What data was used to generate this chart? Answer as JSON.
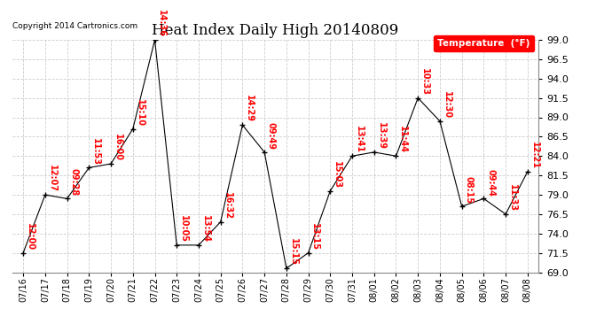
{
  "title": "Heat Index Daily High 20140809",
  "copyright": "Copyright 2014 Cartronics.com",
  "legend_label": "Temperature  (°F)",
  "ylim": [
    69.0,
    99.0
  ],
  "yticks": [
    69.0,
    71.5,
    74.0,
    76.5,
    79.0,
    81.5,
    84.0,
    86.5,
    89.0,
    91.5,
    94.0,
    96.5,
    99.0
  ],
  "dates": [
    "07/16",
    "07/17",
    "07/18",
    "07/19",
    "07/20",
    "07/21",
    "07/22",
    "07/23",
    "07/24",
    "07/25",
    "07/26",
    "07/27",
    "07/28",
    "07/29",
    "07/30",
    "07/31",
    "08/01",
    "08/02",
    "08/03",
    "08/04",
    "08/05",
    "08/06",
    "08/07",
    "08/08"
  ],
  "values": [
    71.5,
    79.0,
    78.5,
    82.5,
    83.0,
    87.5,
    99.0,
    72.5,
    72.5,
    75.5,
    88.0,
    84.5,
    69.5,
    71.5,
    79.5,
    84.0,
    84.5,
    84.0,
    91.5,
    88.5,
    77.5,
    78.5,
    76.5,
    82.0
  ],
  "labels": [
    "12:00",
    "12:07",
    "09:28",
    "11:53",
    "16:00",
    "15:10",
    "14:36",
    "10:05",
    "13:54",
    "16:32",
    "14:29",
    "09:49",
    "15:15",
    "13:15",
    "15:03",
    "13:41",
    "13:39",
    "11:44",
    "10:33",
    "12:30",
    "08:15",
    "09:44",
    "11:33",
    "12:21"
  ],
  "bg_color": "#ffffff",
  "line_color": "#000000",
  "label_color": "#ff0000",
  "grid_color": "#cccccc",
  "title_fontsize": 12,
  "label_fontsize": 7,
  "tick_fontsize": 8,
  "xtick_fontsize": 7
}
